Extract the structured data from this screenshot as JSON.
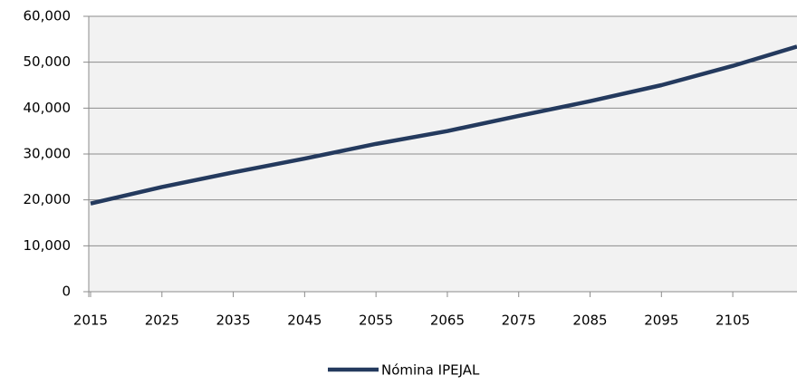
{
  "chart_data": {
    "type": "line",
    "x": [
      2015,
      2025,
      2035,
      2045,
      2055,
      2065,
      2075,
      2085,
      2095,
      2105,
      2114
    ],
    "series": [
      {
        "name": "Nómina IPEJAL",
        "color": "#243a5e",
        "values": [
          19200,
          22800,
          26000,
          29000,
          32200,
          35000,
          38300,
          41500,
          45000,
          49200,
          53400
        ]
      }
    ],
    "xlim": [
      2015,
      2114
    ],
    "xticks": [
      2015,
      2025,
      2035,
      2045,
      2055,
      2065,
      2075,
      2085,
      2095,
      2105
    ],
    "ylim": [
      0,
      60000
    ],
    "yticks": [
      0,
      {
        "value": 10000,
        "label": "10,000"
      },
      {
        "value": 20000,
        "label": "20,000"
      },
      {
        "value": 30000,
        "label": "30,000"
      },
      {
        "value": 40000,
        "label": "40,000"
      },
      {
        "value": 50000,
        "label": "50,000"
      },
      {
        "value": 60000,
        "label": "60,000"
      }
    ],
    "grid": true,
    "legend": "bottom"
  }
}
